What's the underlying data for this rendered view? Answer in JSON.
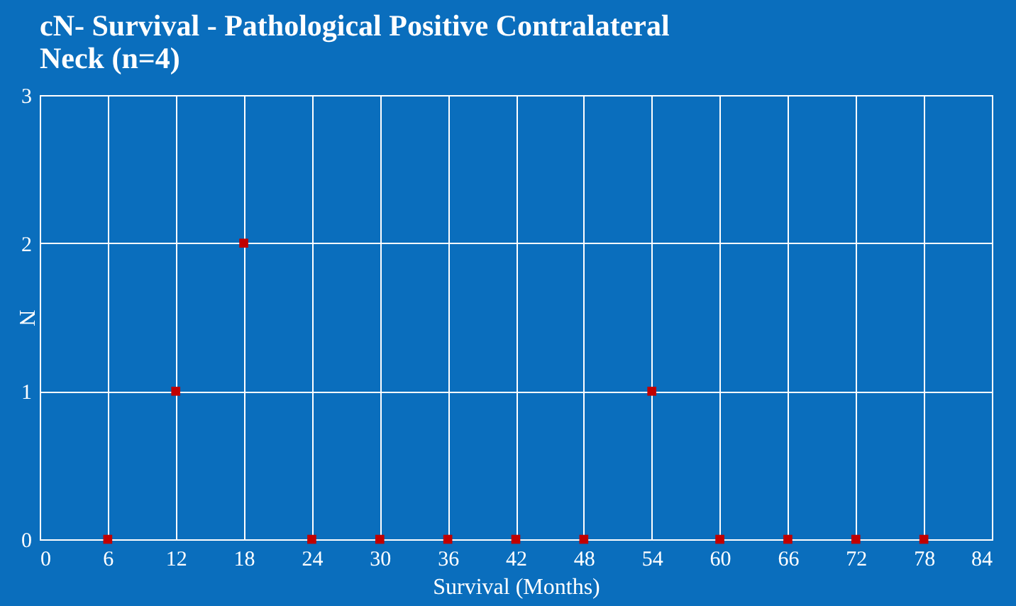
{
  "chart_data": {
    "type": "scatter",
    "title": "cN- Survival - Pathological  Positive Contralateral Neck (n=4)",
    "xlabel": "Survival (Months)",
    "ylabel": "N",
    "x": [
      6,
      12,
      18,
      24,
      30,
      36,
      42,
      48,
      54,
      60,
      66,
      72,
      78
    ],
    "series": [
      {
        "color": "#c00000",
        "values": [
          0,
          1,
          2,
          0,
          0,
          0,
          0,
          0,
          1,
          0,
          0,
          0,
          0
        ]
      }
    ],
    "xlim": [
      0,
      84
    ],
    "xticks": [
      0,
      6,
      12,
      18,
      24,
      30,
      36,
      42,
      48,
      54,
      60,
      66,
      72,
      78,
      84
    ],
    "ylim": [
      0,
      3
    ],
    "yticks": [
      0,
      1,
      2,
      3
    ],
    "grid": true,
    "marker": "square",
    "legend": false
  }
}
